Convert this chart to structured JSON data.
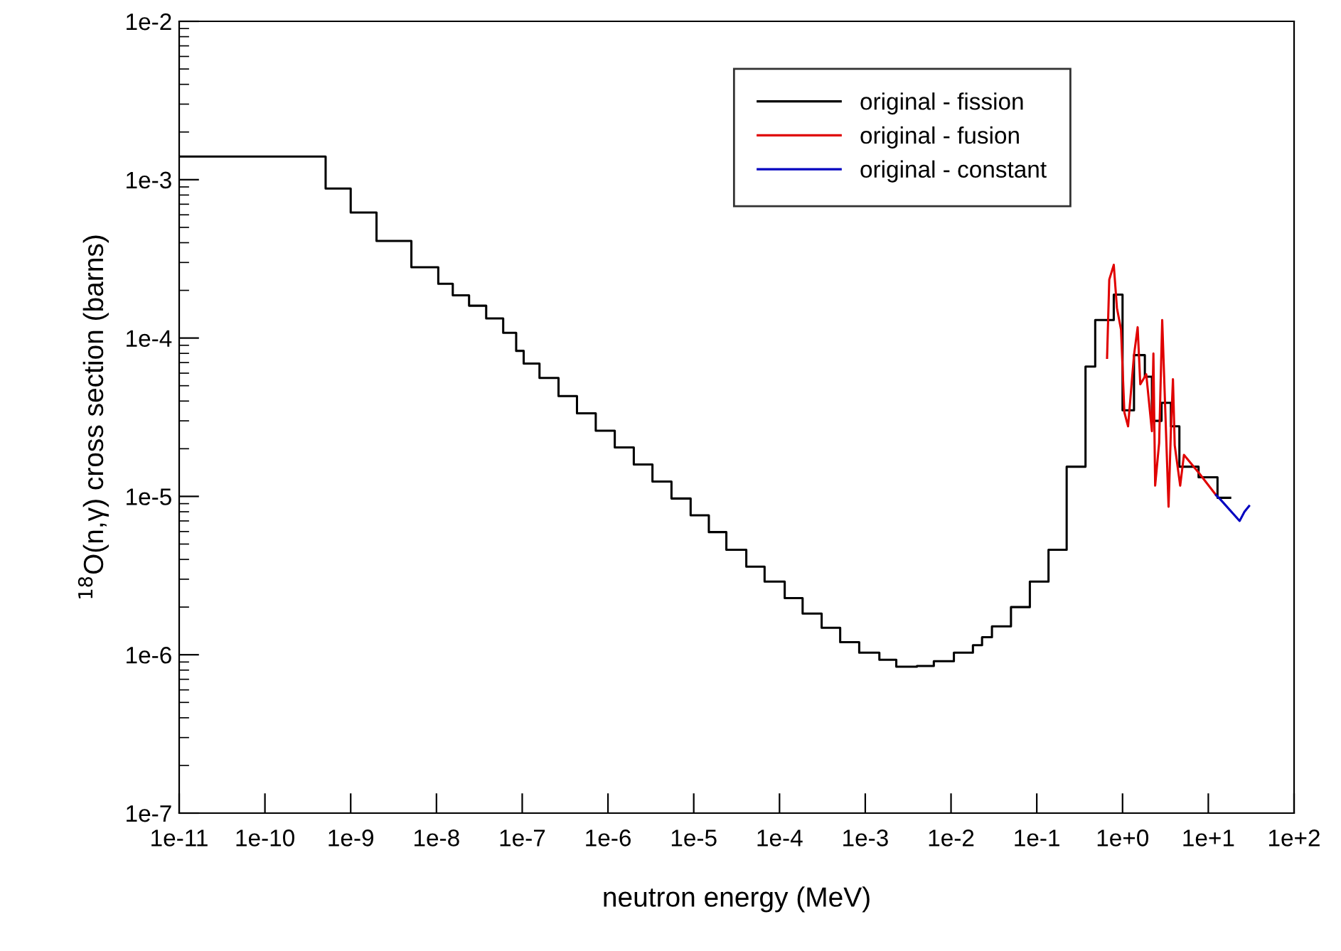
{
  "chart_data": {
    "type": "step",
    "xlabel": "neutron energy (MeV)",
    "ylabel": "$^{18}$O(n,γ) cross section (barns)",
    "log": "xy",
    "legend": "top right",
    "grid": false,
    "xlim": [
      1e-11,
      100
    ],
    "ylim": [
      1e-07,
      0.01
    ],
    "xticks": [
      {
        "value": 1e-11,
        "label": "1e-11"
      },
      {
        "value": 1e-10,
        "label": "1e-10"
      },
      {
        "value": 1e-09,
        "label": "1e-9"
      },
      {
        "value": 1e-08,
        "label": "1e-8"
      },
      {
        "value": 1e-07,
        "label": "1e-7"
      },
      {
        "value": 1e-06,
        "label": "1e-6"
      },
      {
        "value": 1e-05,
        "label": "1e-5"
      },
      {
        "value": 0.0001,
        "label": "1e-4"
      },
      {
        "value": 0.001,
        "label": "1e-3"
      },
      {
        "value": 0.01,
        "label": "1e-2"
      },
      {
        "value": 0.1,
        "label": "1e-1"
      },
      {
        "value": 1,
        "label": "1e+0"
      },
      {
        "value": 10,
        "label": "1e+1"
      },
      {
        "value": 100,
        "label": "1e+2"
      }
    ],
    "yticks": [
      {
        "value": 1e-07,
        "label": "1e-7"
      },
      {
        "value": 1e-06,
        "label": "1e-6"
      },
      {
        "value": 1e-05,
        "label": "1e-5"
      },
      {
        "value": 0.0001,
        "label": "1e-4"
      },
      {
        "value": 0.001,
        "label": "1e-3"
      },
      {
        "value": 0.01,
        "label": "1e-2"
      }
    ],
    "series": [
      {
        "name": "original - fission",
        "color": "#000000",
        "x": [
          1e-11,
          5.1e-10,
          1e-09,
          2e-09,
          5.1e-09,
          1.05e-08,
          1.55e-08,
          2.4e-08,
          3.8e-08,
          6e-08,
          8.5e-08,
          1.04e-07,
          1.59e-07,
          2.65e-07,
          4.35e-07,
          7.2e-07,
          1.2e-06,
          2e-06,
          3.3e-06,
          5.5e-06,
          9.2e-06,
          1.5e-05,
          2.4e-05,
          4.1e-05,
          6.7e-05,
          0.000115,
          0.000186,
          0.00031,
          0.00051,
          0.00085,
          0.00146,
          0.0023,
          0.004,
          0.0063,
          0.0108,
          0.018,
          0.023,
          0.03,
          0.05,
          0.083,
          0.137,
          0.223,
          0.37,
          0.48,
          0.79,
          1.0,
          1.36,
          1.82,
          2.2,
          2.85,
          3.66,
          4.6,
          7.7,
          12.8,
          18
        ],
        "values": [
          0.0014,
          0.00088,
          0.00062,
          0.00041,
          0.00028,
          0.00022,
          0.000186,
          0.00016,
          0.000133,
          0.000108,
          8.3e-05,
          6.9e-05,
          5.6e-05,
          4.3e-05,
          3.35e-05,
          2.6e-05,
          2.04e-05,
          1.59e-05,
          1.24e-05,
          9.7e-06,
          7.6e-06,
          5.95e-06,
          4.6e-06,
          3.6e-06,
          2.9e-06,
          2.28e-06,
          1.82e-06,
          1.48e-06,
          1.2e-06,
          1.03e-06,
          9.3e-07,
          8.4e-07,
          8.5e-07,
          9.1e-07,
          1.03e-06,
          1.15e-06,
          1.29e-06,
          1.51e-06,
          2e-06,
          2.9e-06,
          4.6e-06,
          1.54e-05,
          6.6e-05,
          0.00013,
          0.000188,
          3.5e-05,
          7.8e-05,
          5.7e-05,
          3e-05,
          3.9e-05,
          2.77e-05,
          1.54e-05,
          1.32e-05,
          9.8e-06,
          9.8e-06
        ]
      },
      {
        "name": "original - fusion",
        "type": "line",
        "color": "#e00000",
        "x": [
          0.66,
          0.7,
          0.79,
          0.86,
          0.96,
          1.05,
          1.16,
          1.36,
          1.5,
          1.61,
          1.89,
          2.2,
          2.29,
          2.4,
          2.67,
          2.9,
          3.1,
          3.44,
          3.66,
          3.87,
          4.06,
          4.7,
          5.2,
          7.9,
          12.3
        ],
        "values": [
          7.5e-05,
          0.000234,
          0.00029,
          0.000155,
          0.000113,
          3.4e-05,
          2.77e-05,
          7.8e-05,
          0.000117,
          5.1e-05,
          5.9e-05,
          2.58e-05,
          8e-05,
          1.17e-05,
          2.17e-05,
          0.00013,
          4.5e-05,
          8.6e-06,
          2.58e-05,
          5.5e-05,
          2.1e-05,
          1.17e-05,
          1.83e-05,
          1.39e-05,
          1.02e-05
        ]
      },
      {
        "name": "original - constant",
        "type": "line",
        "color": "#0000c0",
        "x": [
          12.3,
          14.0,
          23.2,
          26.4,
          29.9
        ],
        "values": [
          1.02e-05,
          9.5e-06,
          7e-06,
          8e-06,
          8.7e-06
        ]
      }
    ]
  }
}
